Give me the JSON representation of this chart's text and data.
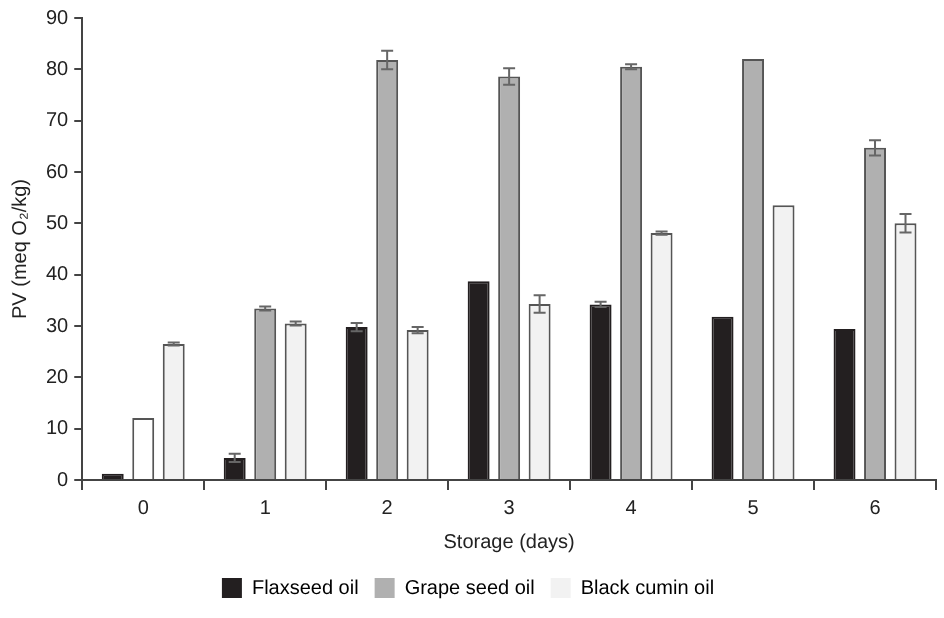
{
  "chart_data": {
    "type": "bar",
    "xlabel": "Storage (days)",
    "ylabel": "PV (meq O₂/kg)",
    "categories": [
      "0",
      "1",
      "2",
      "3",
      "4",
      "5",
      "6"
    ],
    "series": [
      {
        "name": "Flaxseed oil",
        "color": "#231f20",
        "values": [
          1.2,
          4.3,
          29.8,
          38.7,
          34.2,
          31.8,
          29.4
        ],
        "errors": [
          null,
          0.8,
          0.8,
          null,
          0.5,
          null,
          null
        ]
      },
      {
        "name": "Grape seed oil",
        "color": "#b0b0b0",
        "colors": [
          "#ffffff",
          "#b0b0b0",
          "#b0b0b0",
          "#b0b0b0",
          "#b0b0b0",
          "#b0b0b0",
          "#b0b0b0"
        ],
        "values": [
          12.1,
          33.4,
          81.8,
          78.6,
          80.5,
          82,
          64.7
        ],
        "errors": [
          null,
          0.4,
          1.8,
          1.6,
          0.5,
          null,
          1.5
        ]
      },
      {
        "name": "Black cumin oil",
        "color": "#f2f2f2",
        "values": [
          26.5,
          30.5,
          29.2,
          34.3,
          48.1,
          53.5,
          50
        ],
        "errors": [
          0.3,
          0.4,
          0.6,
          1.7,
          0.3,
          null,
          1.8
        ]
      }
    ],
    "ylim": [
      0,
      90
    ],
    "yticks": [
      0,
      10,
      20,
      30,
      40,
      50,
      60,
      70,
      80,
      90
    ],
    "grid": false,
    "legend": "bottom"
  }
}
